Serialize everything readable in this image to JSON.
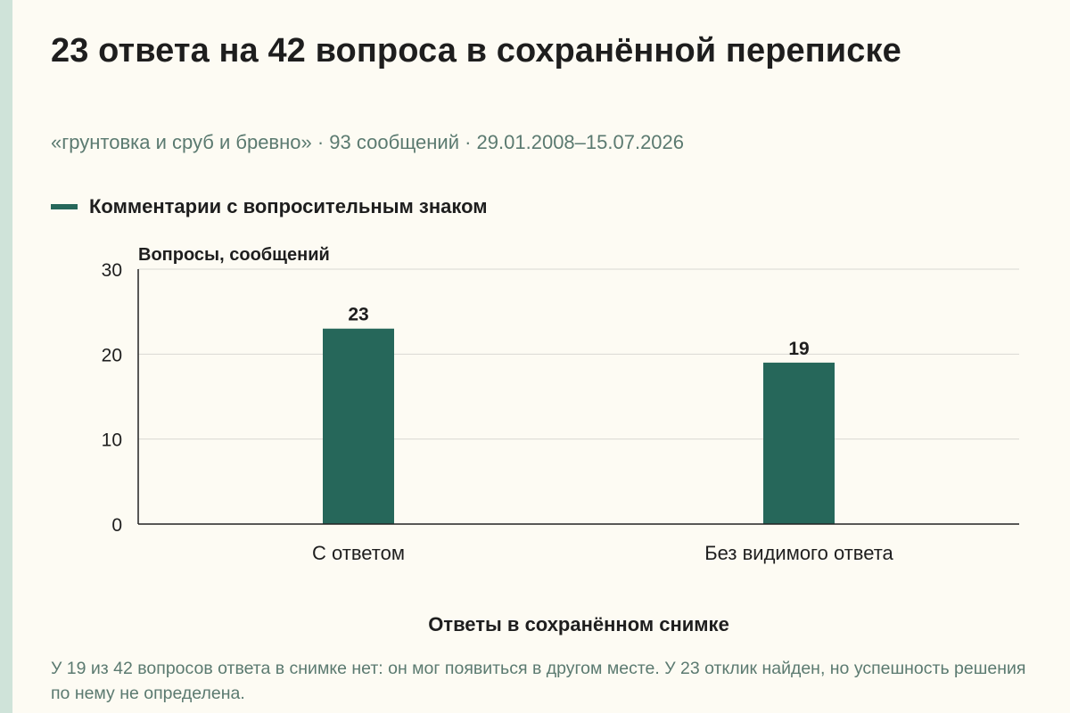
{
  "title": "23 ответа на 42 вопроса в сохранённой переписке",
  "subtitle": "«грунтовка и сруб и бревно» · 93 сообщений · 29.01.2008–15.07.2026",
  "colors": {
    "background": "#fdfbf3",
    "bar": "#26675a",
    "grid": "#d9d9d3",
    "axis": "#222222",
    "strip": "#cfe3d9"
  },
  "chart_data": {
    "type": "bar",
    "categories": [
      "С ответом",
      "Без видимого ответа"
    ],
    "series": [
      {
        "name": "Комментарии с вопросительным знаком",
        "values": [
          23,
          19
        ]
      }
    ],
    "ylabel": "Вопросы, сообщений",
    "xlabel": "Ответы в сохранённом снимке",
    "ylim": [
      0,
      30
    ],
    "yticks": [
      0,
      10,
      20,
      30
    ],
    "data_labels": [
      "23",
      "19"
    ],
    "grid": true,
    "legend": "top-left"
  },
  "footnote": "У 19 из 42 вопросов ответа в снимке нет: он мог появиться в другом месте. У 23 отклик найден, но успешность решения по нему не определена."
}
